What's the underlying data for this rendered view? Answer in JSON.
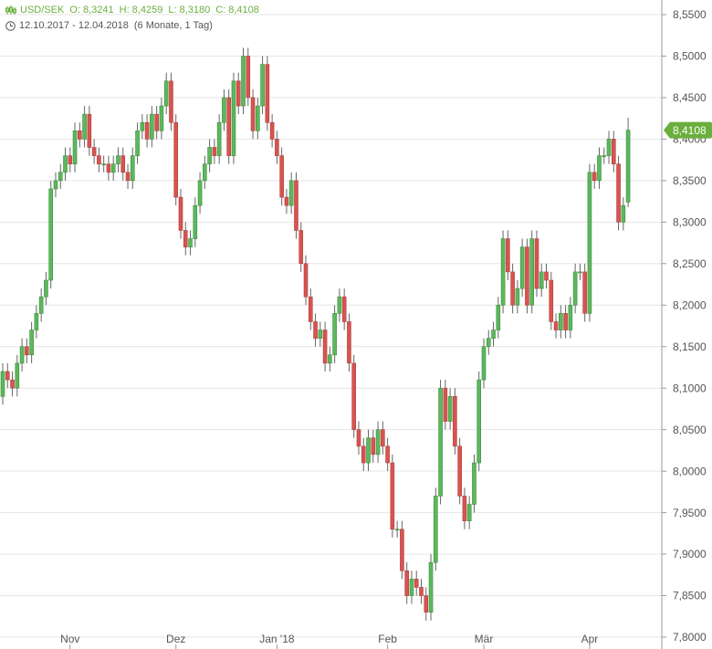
{
  "header": {
    "symbol": "USD/SEK",
    "ohlc": [
      "O: 8,3241",
      "H: 8,4259",
      "L: 8,3180",
      "C: 8,4108"
    ],
    "range": "12.10.2017 - 12.04.2018",
    "period": "(6 Monate, 1 Tag)"
  },
  "chart_data": {
    "type": "candlestick",
    "categories": [
      null,
      null,
      null,
      null,
      null,
      null,
      null,
      null,
      null,
      null,
      null,
      null,
      null,
      null,
      "Nov",
      null,
      null,
      null,
      null,
      null,
      null,
      null,
      null,
      null,
      null,
      null,
      null,
      null,
      null,
      null,
      null,
      null,
      null,
      null,
      null,
      null,
      "Dez",
      null,
      null,
      null,
      null,
      null,
      null,
      null,
      null,
      null,
      null,
      null,
      null,
      null,
      null,
      null,
      null,
      null,
      null,
      null,
      null,
      "Jan '18",
      null,
      null,
      null,
      null,
      null,
      null,
      null,
      null,
      null,
      null,
      null,
      null,
      null,
      null,
      null,
      null,
      null,
      null,
      null,
      null,
      null,
      null,
      "Feb",
      null,
      null,
      null,
      null,
      null,
      null,
      null,
      null,
      null,
      null,
      null,
      null,
      null,
      null,
      null,
      null,
      null,
      null,
      null,
      "Mär",
      null,
      null,
      null,
      null,
      null,
      null,
      null,
      null,
      null,
      null,
      null,
      null,
      null,
      null,
      null,
      null,
      null,
      null,
      null,
      null,
      null,
      "Apr",
      null,
      null,
      null,
      null,
      null,
      null,
      null,
      null
    ],
    "series": [
      {
        "name": "USD/SEK",
        "up_color": "#5cb85c",
        "down_color": "#d9534f",
        "open": [
          8.09,
          8.12,
          8.11,
          8.1,
          8.13,
          8.15,
          8.14,
          8.17,
          8.19,
          8.21,
          8.23,
          8.34,
          8.35,
          8.36,
          8.38,
          8.37,
          8.41,
          8.4,
          8.43,
          8.39,
          8.38,
          8.37,
          8.37,
          8.36,
          8.37,
          8.38,
          8.36,
          8.35,
          8.38,
          8.41,
          8.42,
          8.4,
          8.43,
          8.41,
          8.44,
          8.47,
          8.42,
          8.33,
          8.29,
          8.27,
          8.28,
          8.32,
          8.35,
          8.37,
          8.39,
          8.38,
          8.42,
          8.45,
          8.38,
          8.47,
          8.44,
          8.5,
          8.45,
          8.41,
          8.44,
          8.49,
          8.42,
          8.4,
          8.38,
          8.33,
          8.32,
          8.35,
          8.29,
          8.25,
          8.21,
          8.18,
          8.16,
          8.17,
          8.13,
          8.14,
          8.19,
          8.21,
          8.18,
          8.13,
          8.05,
          8.03,
          8.01,
          8.04,
          8.02,
          8.05,
          8.03,
          8.01,
          7.93,
          7.93,
          7.88,
          7.85,
          7.87,
          7.86,
          7.85,
          7.83,
          7.89,
          7.97,
          8.1,
          8.06,
          8.09,
          8.03,
          7.97,
          7.94,
          7.96,
          8.01,
          8.11,
          8.15,
          8.16,
          8.17,
          8.2,
          8.28,
          8.24,
          8.2,
          8.22,
          8.27,
          8.2,
          8.28,
          8.22,
          8.24,
          8.23,
          8.18,
          8.17,
          8.19,
          8.17,
          8.2,
          8.24,
          8.24,
          8.19,
          8.36,
          8.35,
          8.38,
          8.38,
          8.4,
          8.37,
          8.3,
          8.3241
        ],
        "high": [
          8.13,
          8.13,
          8.12,
          8.14,
          8.16,
          8.16,
          8.18,
          8.2,
          8.22,
          8.24,
          8.35,
          8.36,
          8.37,
          8.39,
          8.39,
          8.42,
          8.42,
          8.44,
          8.44,
          8.4,
          8.39,
          8.38,
          8.38,
          8.38,
          8.39,
          8.39,
          8.37,
          8.39,
          8.42,
          8.43,
          8.43,
          8.44,
          8.44,
          8.45,
          8.48,
          8.48,
          8.43,
          8.34,
          8.3,
          8.29,
          8.33,
          8.36,
          8.38,
          8.4,
          8.4,
          8.43,
          8.46,
          8.46,
          8.48,
          8.48,
          8.51,
          8.51,
          8.46,
          8.45,
          8.5,
          8.5,
          8.43,
          8.41,
          8.39,
          8.34,
          8.36,
          8.36,
          8.3,
          8.26,
          8.22,
          8.19,
          8.18,
          8.18,
          8.15,
          8.2,
          8.22,
          8.22,
          8.19,
          8.14,
          8.06,
          8.04,
          8.05,
          8.05,
          8.06,
          8.06,
          8.04,
          8.02,
          7.94,
          7.94,
          7.89,
          7.88,
          7.88,
          7.87,
          7.86,
          7.9,
          7.98,
          8.11,
          8.11,
          8.1,
          8.1,
          8.04,
          7.98,
          7.97,
          8.02,
          8.12,
          8.16,
          8.17,
          8.18,
          8.21,
          8.29,
          8.29,
          8.25,
          8.23,
          8.28,
          8.28,
          8.29,
          8.29,
          8.25,
          8.25,
          8.24,
          8.19,
          8.2,
          8.2,
          8.21,
          8.25,
          8.25,
          8.25,
          8.37,
          8.37,
          8.39,
          8.39,
          8.41,
          8.41,
          8.38,
          8.33,
          8.4259
        ],
        "low": [
          8.08,
          8.1,
          8.09,
          8.09,
          8.12,
          8.13,
          8.13,
          8.16,
          8.18,
          8.2,
          8.22,
          8.33,
          8.34,
          8.35,
          8.36,
          8.36,
          8.39,
          8.39,
          8.38,
          8.37,
          8.36,
          8.36,
          8.35,
          8.35,
          8.36,
          8.35,
          8.34,
          8.34,
          8.37,
          8.4,
          8.39,
          8.39,
          8.4,
          8.4,
          8.43,
          8.41,
          8.32,
          8.28,
          8.26,
          8.26,
          8.27,
          8.31,
          8.34,
          8.36,
          8.37,
          8.37,
          8.41,
          8.37,
          8.37,
          8.43,
          8.43,
          8.44,
          8.4,
          8.4,
          8.43,
          8.41,
          8.39,
          8.37,
          8.32,
          8.31,
          8.31,
          8.28,
          8.24,
          8.2,
          8.17,
          8.15,
          8.15,
          8.12,
          8.12,
          8.13,
          8.18,
          8.17,
          8.12,
          8.04,
          8.02,
          8.0,
          8.0,
          8.01,
          8.01,
          8.02,
          8.0,
          7.92,
          7.92,
          7.87,
          7.84,
          7.84,
          7.85,
          7.84,
          7.82,
          7.82,
          7.88,
          7.96,
          8.05,
          8.05,
          8.02,
          7.96,
          7.93,
          7.93,
          7.95,
          8.0,
          8.1,
          8.14,
          8.15,
          8.16,
          8.19,
          8.23,
          8.19,
          8.19,
          8.21,
          8.19,
          8.19,
          8.21,
          8.21,
          8.22,
          8.17,
          8.16,
          8.16,
          8.16,
          8.16,
          8.19,
          8.23,
          8.18,
          8.18,
          8.34,
          8.34,
          8.37,
          8.37,
          8.36,
          8.29,
          8.29,
          8.318
        ],
        "close": [
          8.12,
          8.11,
          8.1,
          8.13,
          8.15,
          8.14,
          8.17,
          8.19,
          8.21,
          8.23,
          8.34,
          8.35,
          8.36,
          8.38,
          8.37,
          8.41,
          8.4,
          8.43,
          8.39,
          8.38,
          8.37,
          8.37,
          8.36,
          8.37,
          8.38,
          8.36,
          8.35,
          8.38,
          8.41,
          8.42,
          8.4,
          8.43,
          8.41,
          8.44,
          8.47,
          8.42,
          8.33,
          8.29,
          8.27,
          8.28,
          8.32,
          8.35,
          8.37,
          8.39,
          8.38,
          8.42,
          8.45,
          8.38,
          8.47,
          8.44,
          8.5,
          8.45,
          8.41,
          8.44,
          8.49,
          8.42,
          8.4,
          8.38,
          8.33,
          8.32,
          8.35,
          8.29,
          8.25,
          8.21,
          8.18,
          8.16,
          8.17,
          8.13,
          8.14,
          8.19,
          8.21,
          8.18,
          8.13,
          8.05,
          8.03,
          8.01,
          8.04,
          8.02,
          8.05,
          8.03,
          8.01,
          7.93,
          7.93,
          7.88,
          7.85,
          7.87,
          7.86,
          7.85,
          7.83,
          7.89,
          7.97,
          8.1,
          8.06,
          8.09,
          8.03,
          7.97,
          7.94,
          7.96,
          8.01,
          8.11,
          8.15,
          8.16,
          8.17,
          8.2,
          8.28,
          8.24,
          8.2,
          8.22,
          8.27,
          8.2,
          8.28,
          8.22,
          8.24,
          8.23,
          8.18,
          8.17,
          8.19,
          8.17,
          8.2,
          8.24,
          8.24,
          8.19,
          8.36,
          8.35,
          8.38,
          8.38,
          8.4,
          8.37,
          8.3,
          8.32,
          8.4108
        ]
      }
    ],
    "last_price": {
      "value": 8.4108,
      "label": "8,4108",
      "color": "#6aaf3d"
    },
    "ylim": [
      7.7857,
      8.5676
    ],
    "yticks": [
      {
        "value": 7.8,
        "label": "7,8000"
      },
      {
        "value": 7.85,
        "label": "7,8500"
      },
      {
        "value": 7.9,
        "label": "7,9000"
      },
      {
        "value": 7.95,
        "label": "7,9500"
      },
      {
        "value": 8.0,
        "label": "8,0000"
      },
      {
        "value": 8.05,
        "label": "8,0500"
      },
      {
        "value": 8.1,
        "label": "8,1000"
      },
      {
        "value": 8.15,
        "label": "8,1500"
      },
      {
        "value": 8.2,
        "label": "8,2000"
      },
      {
        "value": 8.25,
        "label": "8,2500"
      },
      {
        "value": 8.3,
        "label": "8,3000"
      },
      {
        "value": 8.35,
        "label": "8,3500"
      },
      {
        "value": 8.4,
        "label": "8,4000"
      },
      {
        "value": 8.45,
        "label": "8,4500"
      },
      {
        "value": 8.5,
        "label": "8,5000"
      },
      {
        "value": 8.55,
        "label": "8,5500"
      }
    ],
    "grid": true
  }
}
